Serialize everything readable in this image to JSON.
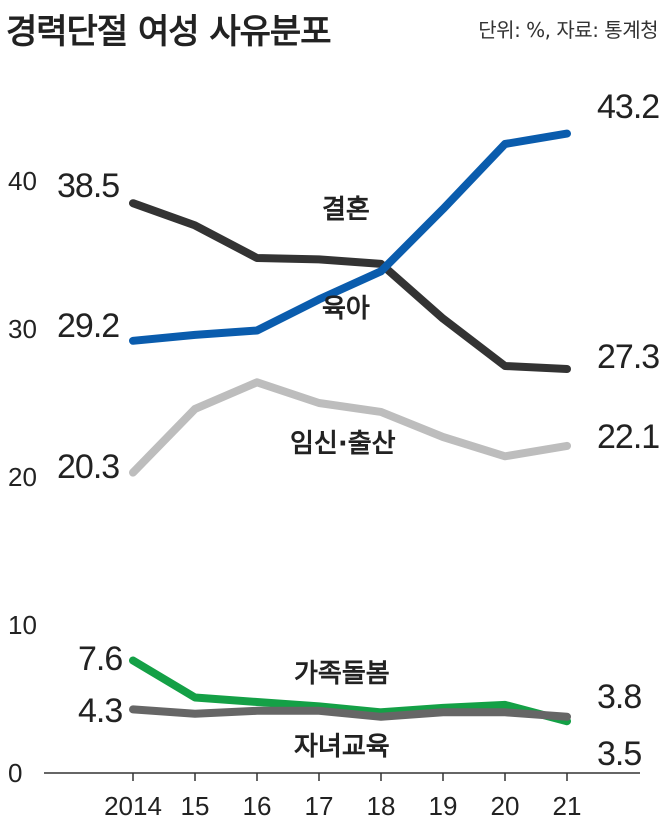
{
  "title": "경력단절 여성 사유분포",
  "source": "단위: %, 자료: 통계청",
  "chart_data": {
    "type": "line",
    "title": "경력단절 여성 사유분포",
    "x": [
      "2014",
      "15",
      "16",
      "17",
      "18",
      "19",
      "20",
      "21"
    ],
    "ylim": [
      0,
      45
    ],
    "yticks": [
      0,
      10,
      20,
      30,
      40
    ],
    "grid": false,
    "series": [
      {
        "name": "결혼",
        "color": "#333333",
        "values": [
          38.5,
          37.0,
          34.8,
          34.7,
          34.4,
          30.7,
          27.5,
          27.3
        ],
        "first_label": "38.5",
        "last_label": "27.3"
      },
      {
        "name": "육아",
        "color": "#0a5cad",
        "values": [
          29.2,
          29.6,
          29.9,
          32.0,
          33.9,
          38.1,
          42.5,
          43.2
        ],
        "first_label": "29.2",
        "last_label": "43.2"
      },
      {
        "name": "임신·출산",
        "color": "#bdbdbd",
        "values": [
          20.3,
          24.6,
          26.4,
          25.0,
          24.4,
          22.7,
          21.4,
          22.1
        ],
        "first_label": "20.3",
        "last_label": "22.1"
      },
      {
        "name": "가족돌봄",
        "color": "#14a046",
        "values": [
          7.6,
          5.1,
          4.8,
          4.5,
          4.1,
          4.4,
          4.6,
          3.5
        ],
        "first_label": "7.6",
        "last_label": "3.5"
      },
      {
        "name": "자녀교육",
        "color": "#666666",
        "values": [
          4.3,
          4.0,
          4.2,
          4.2,
          3.8,
          4.1,
          4.1,
          3.8
        ],
        "first_label": "4.3",
        "last_label": "3.8"
      }
    ]
  }
}
